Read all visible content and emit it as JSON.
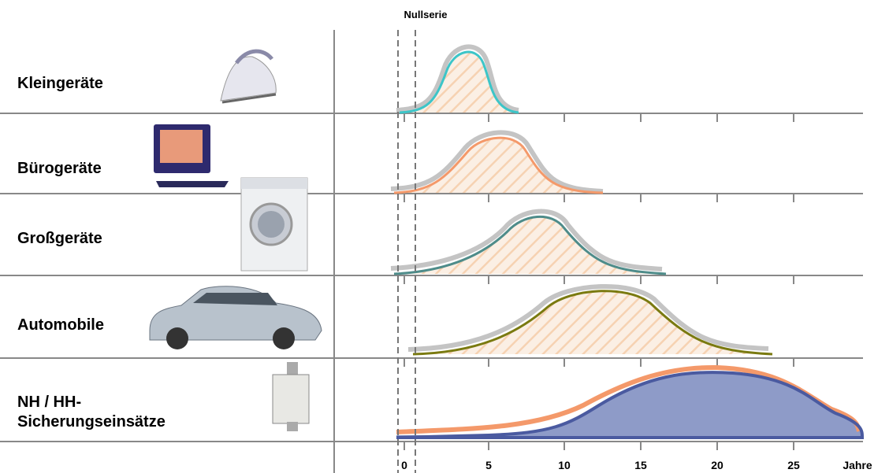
{
  "header_label": "Nullserie",
  "rows": [
    {
      "label": "Kleingeräte"
    },
    {
      "label": "Bürogeräte"
    },
    {
      "label": "Großgeräte"
    },
    {
      "label": "Automobile"
    },
    {
      "label": [
        "NH / HH-",
        "Sicherungseinsätze"
      ]
    }
  ],
  "axis": {
    "ticks": [
      "0",
      "5",
      "10",
      "15",
      "20",
      "25"
    ],
    "unit": "Jahre"
  }
}
